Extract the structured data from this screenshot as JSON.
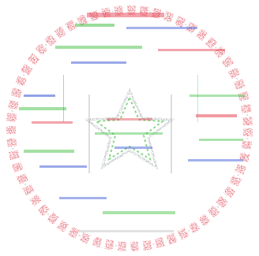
{
  "image": {
    "kind": "seal",
    "colors": {
      "ring": "#e23a4a",
      "glitch_green": "#49c24a",
      "glitch_blue": "#3a57d6",
      "glitch_red": "#e23a4a",
      "glitch_gray": "#9aa0a6"
    },
    "icons": [
      "star-icon"
    ]
  }
}
